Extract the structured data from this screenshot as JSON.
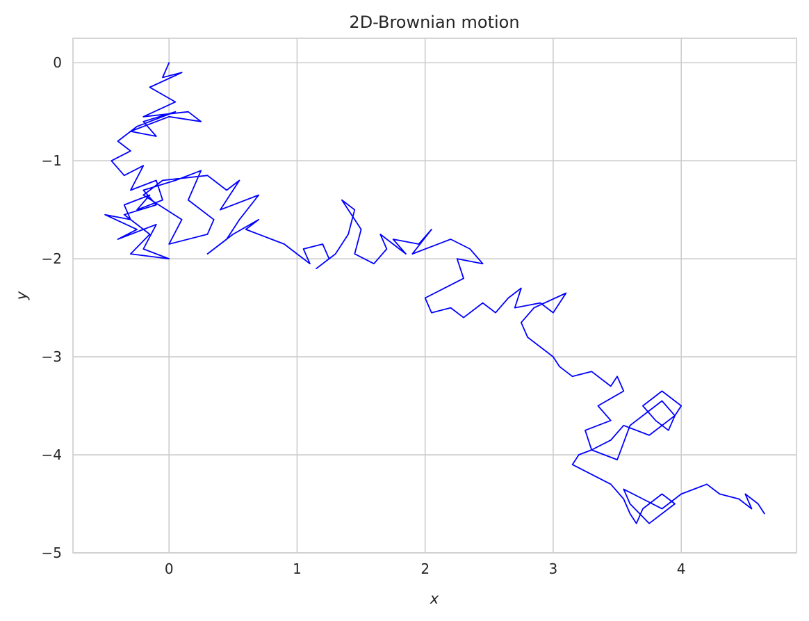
{
  "chart_data": {
    "type": "line",
    "title": "2D-Brownian motion",
    "xlabel": "x",
    "ylabel": "y",
    "xlim": [
      -0.75,
      4.9
    ],
    "ylim": [
      -5.0,
      0.25
    ],
    "xticks": [
      0,
      1,
      2,
      3,
      4
    ],
    "yticks": [
      0,
      -1,
      -2,
      -3,
      -4,
      -5
    ],
    "xtick_labels": [
      "0",
      "1",
      "2",
      "3",
      "4"
    ],
    "ytick_labels": [
      "0",
      "−1",
      "−2",
      "−3",
      "−4",
      "−5"
    ],
    "grid": true,
    "legend": "none",
    "line_color": "#0000ff",
    "grid_color": "#cccccc",
    "series": [
      {
        "x": [
          0.0,
          -0.05,
          0.1,
          -0.15,
          0.05,
          -0.2,
          0.15,
          0.25,
          0.0,
          -0.3,
          -0.1,
          -0.2,
          0.05,
          -0.25,
          -0.4,
          -0.3,
          -0.45,
          -0.35,
          -0.2,
          -0.3,
          -0.1,
          -0.05,
          -0.25,
          -0.15,
          -0.35,
          -0.3,
          -0.5,
          -0.25,
          -0.4,
          -0.1,
          -0.2,
          0.0,
          -0.3,
          -0.15,
          -0.35,
          -0.1,
          -0.2,
          0.05,
          0.25,
          0.15,
          0.35,
          0.3,
          0.0,
          0.1,
          -0.2,
          -0.05,
          0.3,
          0.45,
          0.55,
          0.4,
          0.7,
          0.55,
          0.45,
          0.3,
          0.5,
          0.7,
          0.6,
          0.8,
          0.9,
          1.0,
          1.1,
          1.05,
          1.2,
          1.25,
          1.15,
          1.3,
          1.4,
          1.45,
          1.35,
          1.5,
          1.45,
          1.6,
          1.7,
          1.65,
          1.85,
          1.75,
          1.95,
          2.05,
          1.9,
          2.2,
          2.35,
          2.45,
          2.25,
          2.3,
          2.15,
          2.0,
          2.05,
          2.2,
          2.3,
          2.45,
          2.55,
          2.65,
          2.75,
          2.7,
          2.9,
          3.0,
          3.1,
          2.85,
          2.75,
          2.8,
          2.95,
          3.0,
          3.05,
          3.15,
          3.3,
          3.45,
          3.5,
          3.55,
          3.35,
          3.45,
          3.25,
          3.3,
          3.5,
          3.6,
          3.75,
          3.85,
          3.95,
          4.0,
          3.85,
          3.7,
          3.8,
          3.9,
          3.95,
          3.75,
          3.55,
          3.45,
          3.3,
          3.2,
          3.15,
          3.3,
          3.45,
          3.55,
          3.6,
          3.65,
          3.7,
          3.85,
          3.95,
          3.8,
          3.75,
          3.6,
          3.55,
          3.7,
          3.85,
          4.0,
          4.1,
          4.2,
          4.3,
          4.45,
          4.55,
          4.5,
          4.6,
          4.65
        ],
        "y": [
          0.0,
          -0.15,
          -0.1,
          -0.25,
          -0.4,
          -0.55,
          -0.5,
          -0.6,
          -0.55,
          -0.7,
          -0.75,
          -0.6,
          -0.5,
          -0.65,
          -0.8,
          -0.9,
          -1.0,
          -1.15,
          -1.05,
          -1.3,
          -1.2,
          -1.4,
          -1.5,
          -1.35,
          -1.45,
          -1.6,
          -1.55,
          -1.7,
          -1.8,
          -1.65,
          -1.9,
          -2.0,
          -1.95,
          -1.75,
          -1.55,
          -1.45,
          -1.3,
          -1.2,
          -1.1,
          -1.4,
          -1.6,
          -1.75,
          -1.85,
          -1.6,
          -1.35,
          -1.2,
          -1.15,
          -1.3,
          -1.2,
          -1.5,
          -1.35,
          -1.6,
          -1.8,
          -1.95,
          -1.75,
          -1.6,
          -1.7,
          -1.8,
          -1.85,
          -1.95,
          -2.05,
          -1.9,
          -1.85,
          -2.0,
          -2.1,
          -1.95,
          -1.75,
          -1.5,
          -1.4,
          -1.7,
          -1.95,
          -2.05,
          -1.9,
          -1.75,
          -1.95,
          -1.8,
          -1.85,
          -1.7,
          -1.95,
          -1.8,
          -1.9,
          -2.05,
          -2.0,
          -2.2,
          -2.3,
          -2.4,
          -2.55,
          -2.5,
          -2.6,
          -2.45,
          -2.55,
          -2.4,
          -2.3,
          -2.5,
          -2.45,
          -2.55,
          -2.35,
          -2.5,
          -2.65,
          -2.8,
          -2.95,
          -3.0,
          -3.1,
          -3.2,
          -3.15,
          -3.3,
          -3.2,
          -3.35,
          -3.5,
          -3.65,
          -3.75,
          -3.95,
          -4.05,
          -3.7,
          -3.55,
          -3.45,
          -3.6,
          -3.5,
          -3.35,
          -3.5,
          -3.65,
          -3.75,
          -3.6,
          -3.8,
          -3.7,
          -3.85,
          -3.95,
          -4.0,
          -4.1,
          -4.2,
          -4.3,
          -4.45,
          -4.6,
          -4.7,
          -4.55,
          -4.4,
          -4.5,
          -4.65,
          -4.7,
          -4.5,
          -4.35,
          -4.45,
          -4.55,
          -4.4,
          -4.35,
          -4.3,
          -4.4,
          -4.45,
          -4.55,
          -4.4,
          -4.5,
          -4.6
        ]
      }
    ]
  }
}
